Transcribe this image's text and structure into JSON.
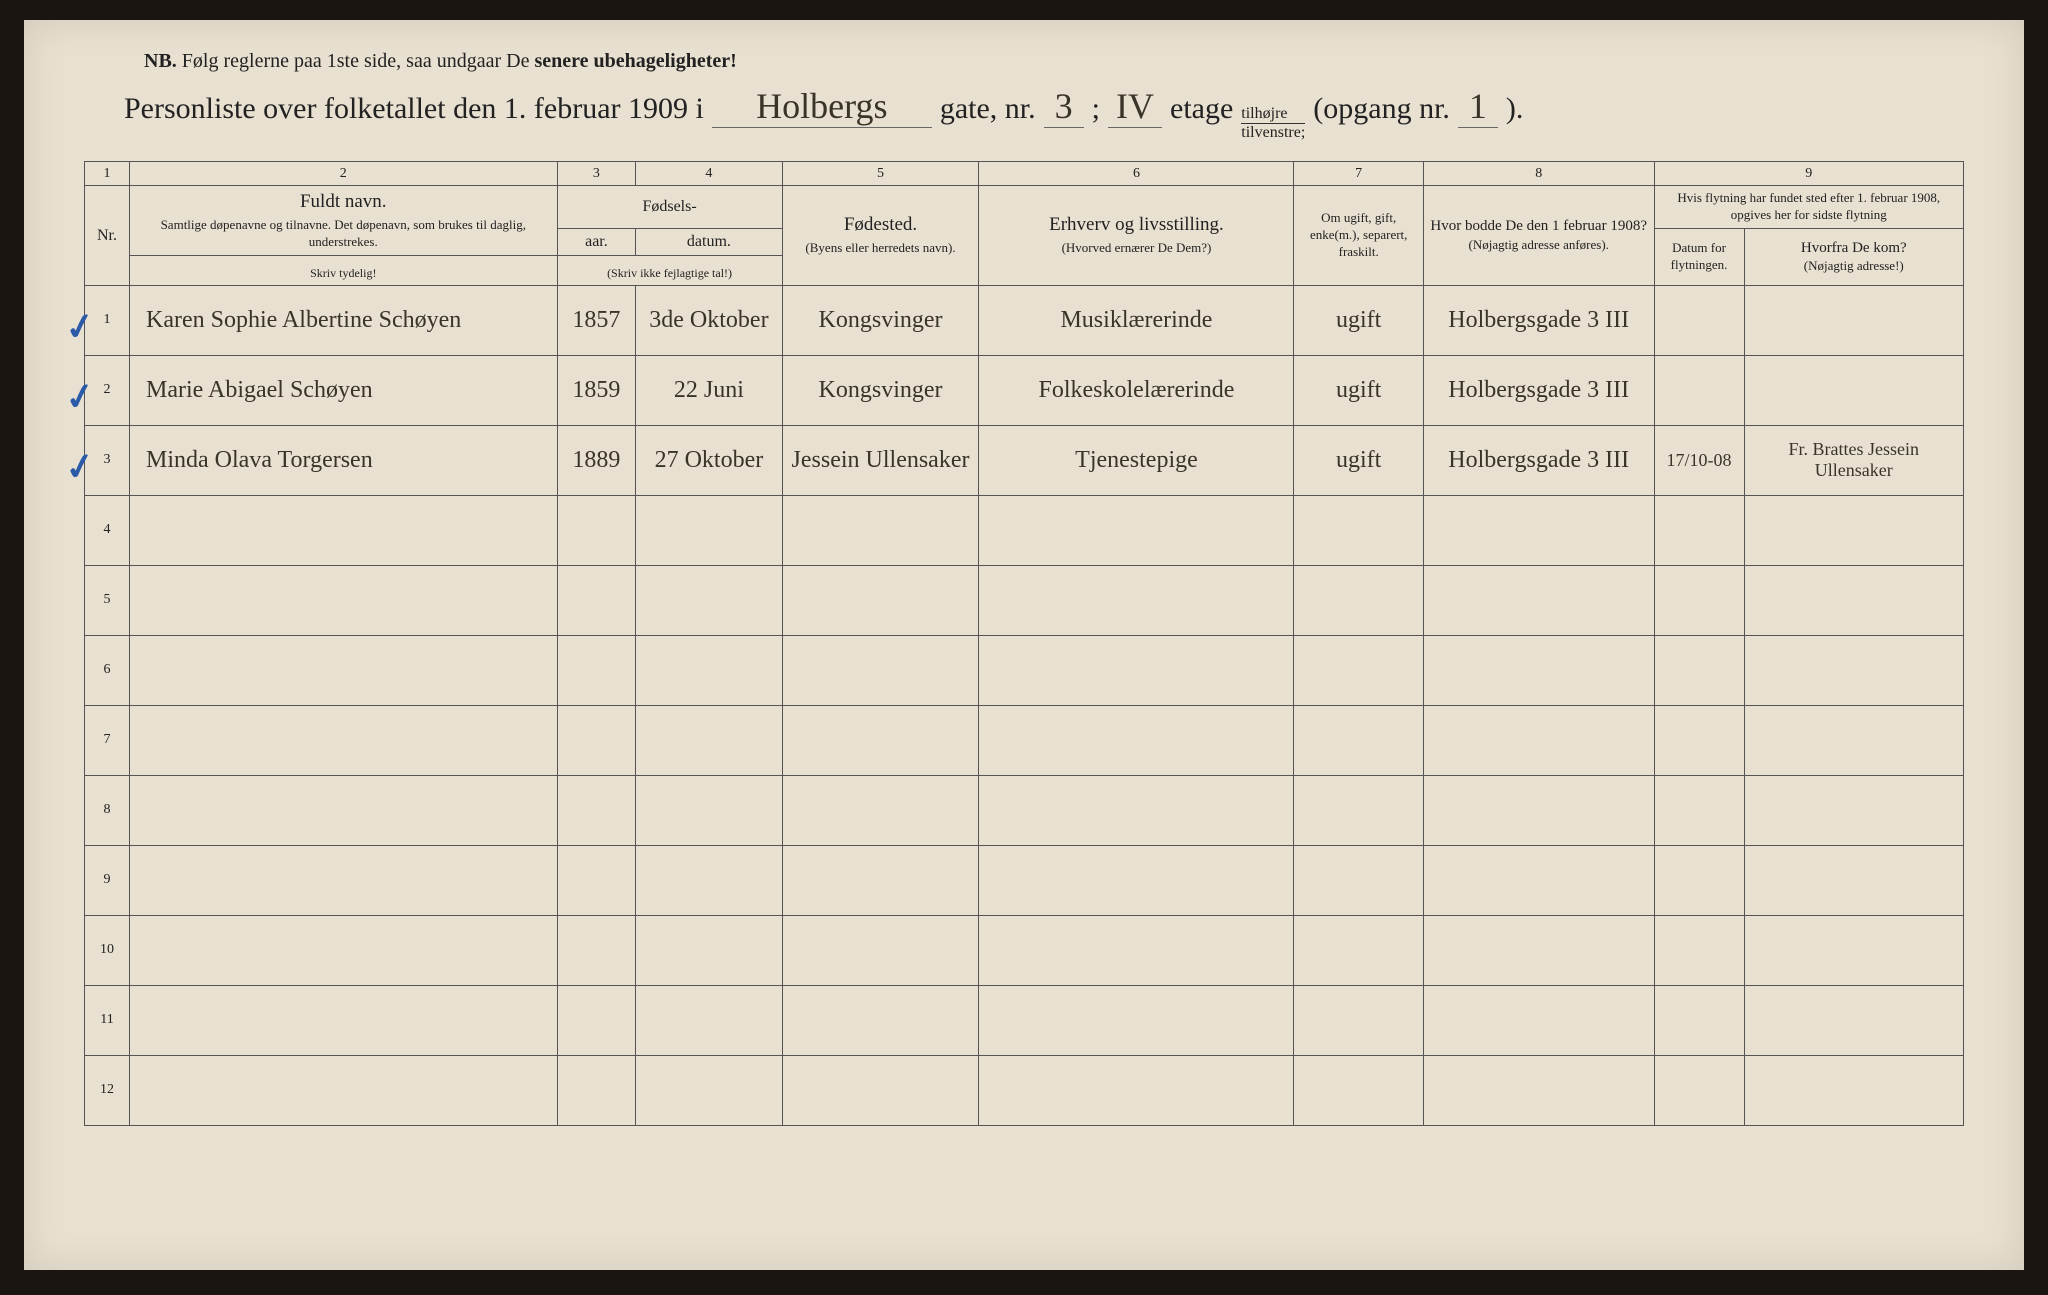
{
  "nb": {
    "prefix": "NB.",
    "text": "Følg reglerne paa 1ste side, saa undgaar De",
    "bold": "senere ubehageligheter!"
  },
  "title": {
    "prefix": "Personliste over folketallet den 1. februar 1909 i",
    "street": "Holbergs",
    "gate_label": "gate, nr.",
    "gate_nr": "3",
    "semi": ";",
    "floor": "IV",
    "etage_label": "etage",
    "side_top": "tilhøjre",
    "side_bottom": "tilvenstre;",
    "opgang_label": "(opgang nr.",
    "opgang_nr": "1",
    "opgang_close": ")."
  },
  "columns": {
    "c1": "1",
    "c2": "2",
    "c3": "3",
    "c4": "4",
    "c5": "5",
    "c6": "6",
    "c7": "7",
    "c8": "8",
    "c9": "9",
    "nr": "Nr.",
    "name_main": "Fuldt navn.",
    "name_sub": "Samtlige døpenavne og tilnavne. Det døpenavn, som brukes til daglig, understrekes.",
    "name_instr": "Skriv tydelig!",
    "birth_group": "Fødsels-",
    "year": "aar.",
    "date": "datum.",
    "year_instr": "(Skriv ikke fejlagtige tal!)",
    "birthplace_main": "Fødested.",
    "birthplace_sub": "(Byens eller herredets navn).",
    "occupation_main": "Erhverv og livsstilling.",
    "occupation_sub": "(Hvorved ernærer De Dem?)",
    "marital_main": "Om ugift, gift, enke(m.), separert, fraskilt.",
    "prev_main": "Hvor bodde De den 1 februar 1908?",
    "prev_sub": "(Nøjagtig adresse anføres).",
    "move_group": "Hvis flytning har fundet sted efter 1. februar 1908, opgives her for sidste flytning",
    "move_date_main": "Datum for flytningen.",
    "from_main": "Hvorfra De kom?",
    "from_sub": "(Nøjagtig adresse!)"
  },
  "rows": [
    {
      "nr": "1",
      "check": true,
      "name": "Karen Sophie Albertine Schøyen",
      "year": "1857",
      "date": "3de Oktober",
      "birthplace": "Kongsvinger",
      "occupation": "Musiklærerinde",
      "marital": "ugift",
      "prev_addr": "Holbergsgade 3 III",
      "move_date": "",
      "from": ""
    },
    {
      "nr": "2",
      "check": true,
      "name": "Marie Abigael Schøyen",
      "year": "1859",
      "date": "22 Juni",
      "birthplace": "Kongsvinger",
      "occupation": "Folkeskolelærerinde",
      "marital": "ugift",
      "prev_addr": "Holbergsgade 3 III",
      "move_date": "",
      "from": ""
    },
    {
      "nr": "3",
      "check": true,
      "name": "Minda Olava Torgersen",
      "year": "1889",
      "date": "27 Oktober",
      "birthplace": "Jessein Ullensaker",
      "occupation": "Tjenestepige",
      "marital": "ugift",
      "prev_addr": "Holbergsgade 3 III",
      "move_date": "17/10-08",
      "from": "Fr. Brattes Jessein Ullensaker"
    },
    {
      "nr": "4",
      "check": false,
      "name": "",
      "year": "",
      "date": "",
      "birthplace": "",
      "occupation": "",
      "marital": "",
      "prev_addr": "",
      "move_date": "",
      "from": ""
    },
    {
      "nr": "5",
      "check": false,
      "name": "",
      "year": "",
      "date": "",
      "birthplace": "",
      "occupation": "",
      "marital": "",
      "prev_addr": "",
      "move_date": "",
      "from": ""
    },
    {
      "nr": "6",
      "check": false,
      "name": "",
      "year": "",
      "date": "",
      "birthplace": "",
      "occupation": "",
      "marital": "",
      "prev_addr": "",
      "move_date": "",
      "from": ""
    },
    {
      "nr": "7",
      "check": false,
      "name": "",
      "year": "",
      "date": "",
      "birthplace": "",
      "occupation": "",
      "marital": "",
      "prev_addr": "",
      "move_date": "",
      "from": ""
    },
    {
      "nr": "8",
      "check": false,
      "name": "",
      "year": "",
      "date": "",
      "birthplace": "",
      "occupation": "",
      "marital": "",
      "prev_addr": "",
      "move_date": "",
      "from": ""
    },
    {
      "nr": "9",
      "check": false,
      "name": "",
      "year": "",
      "date": "",
      "birthplace": "",
      "occupation": "",
      "marital": "",
      "prev_addr": "",
      "move_date": "",
      "from": ""
    },
    {
      "nr": "10",
      "check": false,
      "name": "",
      "year": "",
      "date": "",
      "birthplace": "",
      "occupation": "",
      "marital": "",
      "prev_addr": "",
      "move_date": "",
      "from": ""
    },
    {
      "nr": "11",
      "check": false,
      "name": "",
      "year": "",
      "date": "",
      "birthplace": "",
      "occupation": "",
      "marital": "",
      "prev_addr": "",
      "move_date": "",
      "from": ""
    },
    {
      "nr": "12",
      "check": false,
      "name": "",
      "year": "",
      "date": "",
      "birthplace": "",
      "occupation": "",
      "marital": "",
      "prev_addr": "",
      "move_date": "",
      "from": ""
    }
  ],
  "style": {
    "page_bg": "#e8e0d0",
    "ink": "#3a3428",
    "print": "#222",
    "check_color": "#2a5aa8",
    "border": "#555"
  }
}
